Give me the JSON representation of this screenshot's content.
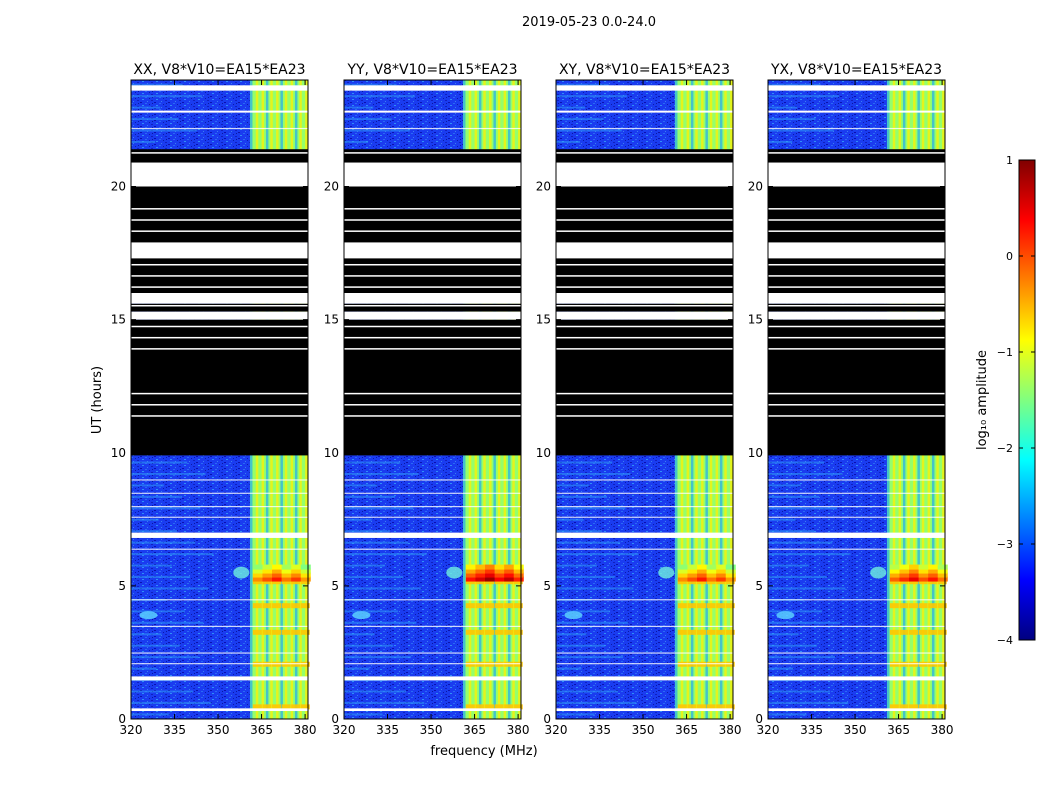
{
  "figure_title": "2019-05-23 0.0-24.0",
  "chart_data": {
    "type": "heatmap",
    "title": "2019-05-23 0.0-24.0",
    "xlabel": "frequency (MHz)",
    "ylabel": "UT (hours)",
    "xlim": [
      320,
      381
    ],
    "ylim": [
      0,
      24
    ],
    "x_ticks": [
      320,
      335,
      350,
      365,
      380
    ],
    "y_ticks": [
      0,
      5,
      10,
      15,
      20
    ],
    "panels": [
      {
        "title": "XX, V8*V10=EA15*EA23",
        "polarization": "XX",
        "peak_log_amplitude": 0.3
      },
      {
        "title": "YY, V8*V10=EA15*EA23",
        "polarization": "YY",
        "peak_log_amplitude": 0.9
      },
      {
        "title": "XY, V8*V10=EA15*EA23",
        "polarization": "XY",
        "peak_log_amplitude": 0.3
      },
      {
        "title": "YX, V8*V10=EA15*EA23",
        "polarization": "YX",
        "peak_log_amplitude": 0.5
      }
    ],
    "rfi_band_mhz": [
      361,
      381
    ],
    "rfi_channels_mhz": [
      361,
      363,
      365,
      366.5,
      368,
      370,
      371.5,
      373,
      375,
      376.5,
      378,
      380
    ],
    "strong_burst_ut": [
      5.2,
      5.8
    ],
    "flagged_ut_ranges": [
      [
        9.9,
        15.0
      ],
      [
        15.3,
        15.6
      ],
      [
        16.0,
        21.4
      ]
    ],
    "blank_ut_ranges": [
      [
        0.3,
        0.4
      ],
      [
        1.45,
        1.6
      ],
      [
        6.8,
        7.0
      ],
      [
        15.0,
        15.3
      ],
      [
        15.6,
        16.0
      ],
      [
        17.3,
        17.9
      ],
      [
        20.0,
        20.9
      ],
      [
        22.8,
        22.85
      ],
      [
        23.6,
        23.8
      ]
    ],
    "colorbar": {
      "label": "log₁₀ amplitude",
      "min": -4,
      "max": 1,
      "ticks": [
        1,
        0,
        -1,
        -2,
        -3,
        -4
      ]
    }
  }
}
